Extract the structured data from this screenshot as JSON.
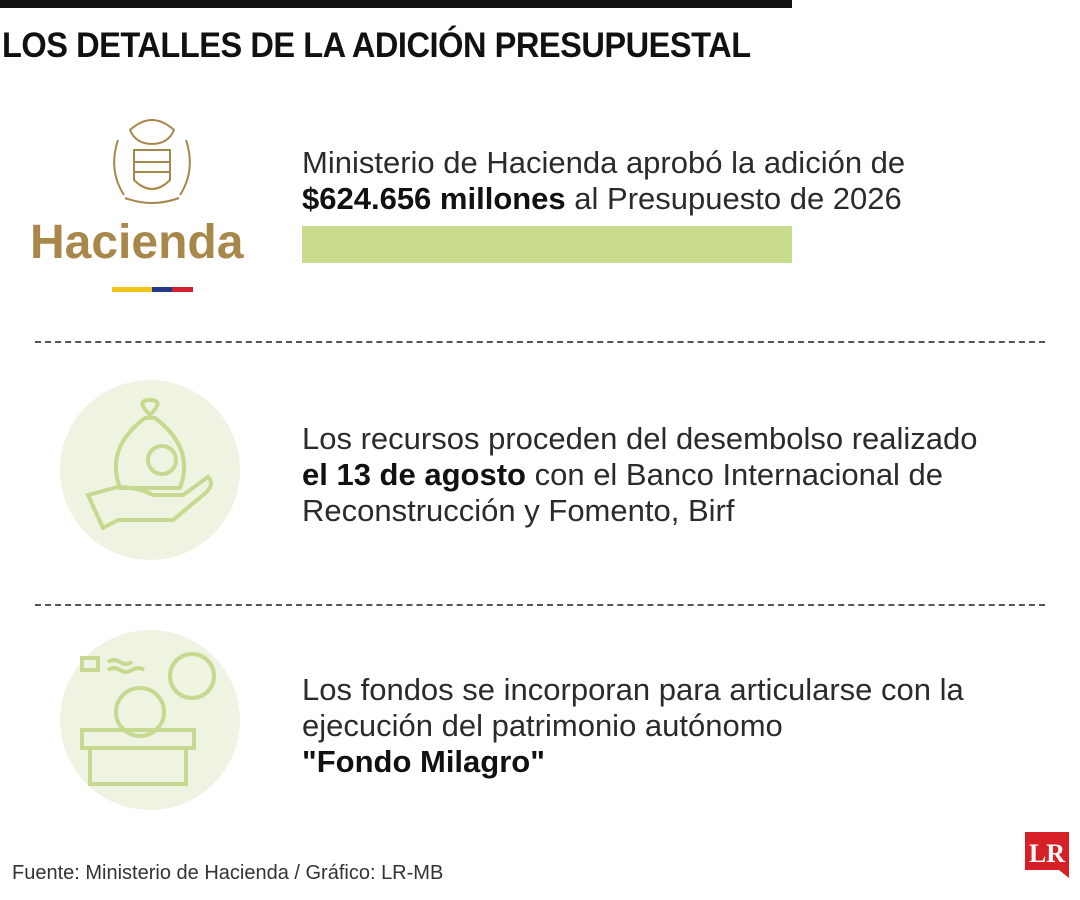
{
  "header": {
    "title": "LOS DETALLES DE LA ADICIÓN PRESUPUESTAL"
  },
  "logo": {
    "text": "Hacienda"
  },
  "sections": [
    {
      "pre": "Ministerio de Hacienda aprobó la adición de",
      "bold": "$624.656 millones",
      "post": "al Presupuesto de 2026"
    },
    {
      "pre": "Los recursos proceden del desembolso realizado",
      "bold": "el 13 de agosto",
      "post": "con el Banco Internacional de Reconstrucción y Fomento, Birf"
    },
    {
      "pre": "Los fondos se incorporan para articularse con la ejecución del patrimonio autónomo",
      "bold": "\"Fondo Milagro\""
    }
  ],
  "footer": {
    "source": "Fuente: Ministerio de Hacienda / Gráfico: LR-MB",
    "brand": "LR"
  }
}
